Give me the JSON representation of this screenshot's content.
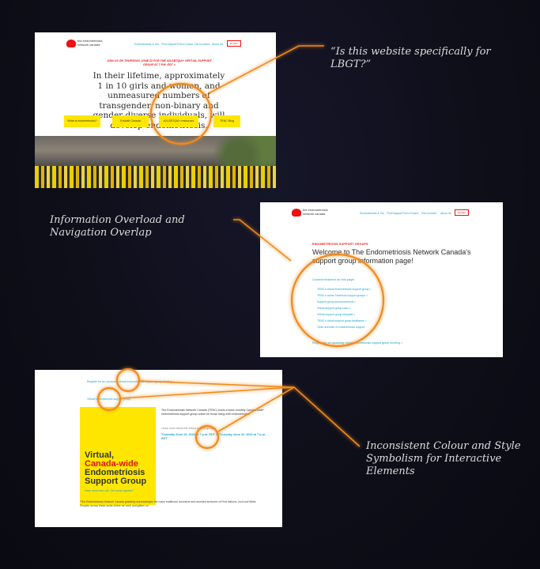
{
  "annotations": {
    "top": "“Is this website specifically for LBGT?”",
    "middle": "Information Overload and Navigation Overlap",
    "bottom": "Inconsistent Colour and Style Symbolism for Interactive Elements"
  },
  "shot1": {
    "logo": "the endometriosis network canada",
    "nav": [
      "Endometriosis & You",
      "Find Support",
      "Find a Doctor",
      "Get Involved",
      "About Us"
    ],
    "donate": "Donate",
    "banner": "JOIN US ON THURSDAY, JUNE 22 FOR THE #2LGBTQIA+ VIRTUAL SUPPORT GROUP AT 7 P.M. EDT >",
    "hero": "In their lifetime, approximately 1 in 10 girls and women, and unmeasured numbers of transgender, non-binary and gender diverse individuals, will develop endometriosis.",
    "buttons": [
      "What is endometriosis?",
      "Endokit Canada",
      "#2LGBTQIA+ resources",
      "TENC Blog"
    ]
  },
  "shot2": {
    "logo": "the endometriosis network canada",
    "nav": [
      "Endometriosis & You",
      "Find Support",
      "Find a Doctor",
      "Get Involved",
      "About Us"
    ],
    "donate": "Donate",
    "section_label": "ENDOMETRIOSIS SUPPORT GROUPS",
    "welcome": "Welcome to The Endometriosis Network Canada's support group information page!",
    "content_head": "Content featured on this page:",
    "toc": [
      "TENC's virtual endometriosis support group >",
      "TENC's online Facebook support groups >",
      "Support group announcements >",
      "Virtual support group rules >",
      "Virtual support group etiquette >",
      "TENC's virtual support group facilitators >",
      "Other avenues of endometriosis support"
    ],
    "register": "Register for an upcoming virtual endometriosis support group meeting >"
  },
  "shot3": {
    "link1": "Register for an upcoming virtual endometriosis support group meeting >",
    "link2": "Virtual endometriosis support group",
    "poster_line1": "Virtual,",
    "poster_line2": "Canada-wide",
    "poster_line3": "Endometriosis",
    "poster_line4": "Support Group",
    "poster_sub": "Have more than one. Get some together!",
    "body": "The Endometriosis Network Canada (TENC) hosts a twice-monthly Canada-wide* endometriosis support group online for those living with endometriosis.",
    "learn": "Learn more about the virtual support group >",
    "date": "Thursday June 15, 2023 at 7 p.m. EDT & Thursday June 22, 2023 at 7 p.m. EDT",
    "footnote": "*The Endometriosis Network Canada gratefully acknowledges the many traditional, ancestral and unceded territories of First Nations, Inuit and Métis Peoples across these lands where we work and gather on."
  },
  "colors": {
    "accent": "#f28a1e",
    "link": "#1aa4c8",
    "brand_red": "#e11111",
    "yellow": "#ffe600"
  }
}
